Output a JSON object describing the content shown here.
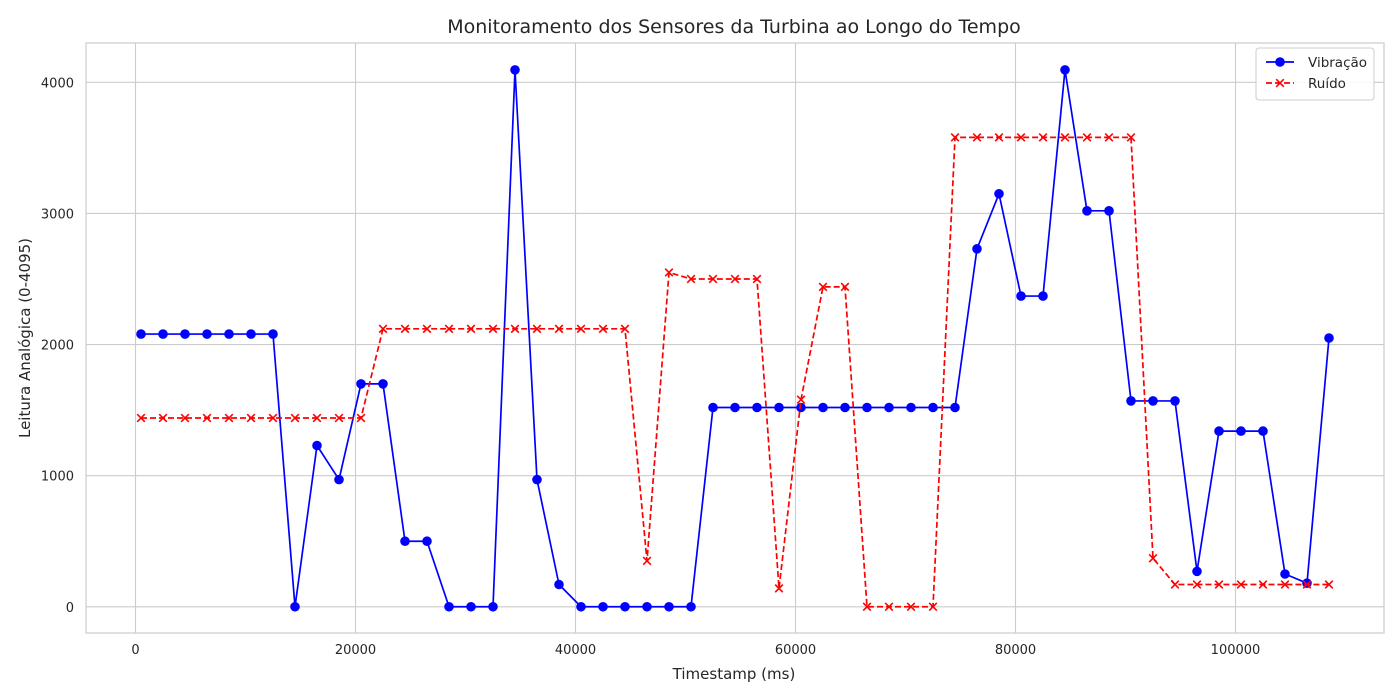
{
  "chart_data": {
    "type": "line",
    "title": "Monitoramento dos Sensores da Turbina ao Longo do Tempo",
    "xlabel": "Timestamp (ms)",
    "ylabel": "Leitura Analógica (0-4095)",
    "xlim": [
      -4500,
      113500
    ],
    "ylim": [
      -200,
      4300
    ],
    "xticks": [
      0,
      20000,
      40000,
      60000,
      80000,
      100000
    ],
    "yticks": [
      0,
      1000,
      2000,
      3000,
      4000
    ],
    "grid": true,
    "legend_position": "top-right",
    "x": [
      500,
      2500,
      4500,
      6500,
      8500,
      10500,
      12500,
      14500,
      16500,
      18500,
      20500,
      22500,
      24500,
      26500,
      28500,
      30500,
      32500,
      34500,
      36500,
      38500,
      40500,
      42500,
      44500,
      46500,
      48500,
      50500,
      52500,
      54500,
      56500,
      58500,
      60500,
      62500,
      64500,
      66500,
      68500,
      70500,
      72500,
      74500,
      76500,
      78500,
      80500,
      82500,
      84500,
      86500,
      88500,
      90500,
      92500,
      94500,
      96500,
      98500,
      100500,
      102500,
      104500,
      106500,
      108500
    ],
    "series": [
      {
        "name": "Vibração",
        "color": "#0000ff",
        "line_style": "solid",
        "marker": "circle",
        "values": [
          2080,
          2080,
          2080,
          2080,
          2080,
          2080,
          2080,
          0,
          1230,
          970,
          1700,
          1700,
          500,
          500,
          0,
          0,
          0,
          4095,
          970,
          170,
          0,
          0,
          0,
          0,
          0,
          0,
          1520,
          1520,
          1520,
          1520,
          1520,
          1520,
          1520,
          1520,
          1520,
          1520,
          1520,
          1520,
          2730,
          3150,
          2370,
          2370,
          4095,
          3020,
          3020,
          1570,
          1570,
          1570,
          270,
          1340,
          1340,
          1340,
          250,
          180,
          2050
        ]
      },
      {
        "name": "Ruído",
        "color": "#ff0000",
        "line_style": "dashed",
        "marker": "x",
        "values": [
          1440,
          1440,
          1440,
          1440,
          1440,
          1440,
          1440,
          1440,
          1440,
          1440,
          1440,
          2120,
          2120,
          2120,
          2120,
          2120,
          2120,
          2120,
          2120,
          2120,
          2120,
          2120,
          2120,
          350,
          2550,
          2500,
          2500,
          2500,
          2500,
          140,
          1580,
          2440,
          2440,
          0,
          0,
          0,
          0,
          3580,
          3580,
          3580,
          3580,
          3580,
          3580,
          3580,
          3580,
          3580,
          370,
          170,
          170,
          170,
          170,
          170,
          170,
          170,
          170
        ]
      }
    ]
  }
}
